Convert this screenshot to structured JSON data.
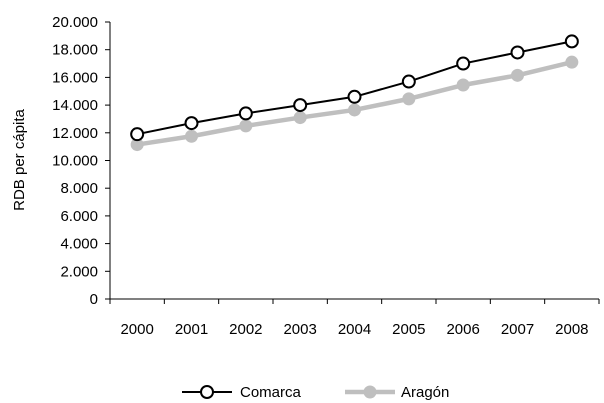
{
  "chart_data": {
    "type": "line",
    "title": "",
    "xlabel": "",
    "ylabel": "RDB per cápita",
    "categories": [
      "2000",
      "2001",
      "2002",
      "2003",
      "2004",
      "2005",
      "2006",
      "2007",
      "2008"
    ],
    "ylim": [
      0,
      20000
    ],
    "yticks": [
      0,
      2000,
      4000,
      6000,
      8000,
      10000,
      12000,
      14000,
      16000,
      18000,
      20000
    ],
    "ytick_labels": [
      "0",
      "2.000",
      "4.000",
      "6.000",
      "8.000",
      "10.000",
      "12.000",
      "14.000",
      "16.000",
      "18.000",
      "20.000"
    ],
    "grid": false,
    "legend_position": "bottom",
    "series": [
      {
        "name": "Comarca",
        "color": "#000000",
        "marker": "open-circle",
        "values": [
          11900,
          12700,
          13400,
          14000,
          14600,
          15700,
          17000,
          17800,
          18600
        ]
      },
      {
        "name": "Aragón",
        "color": "#bfbfbf",
        "marker": "filled-circle",
        "values": [
          11150,
          11750,
          12500,
          13100,
          13650,
          14450,
          15450,
          16150,
          17100
        ]
      }
    ]
  }
}
